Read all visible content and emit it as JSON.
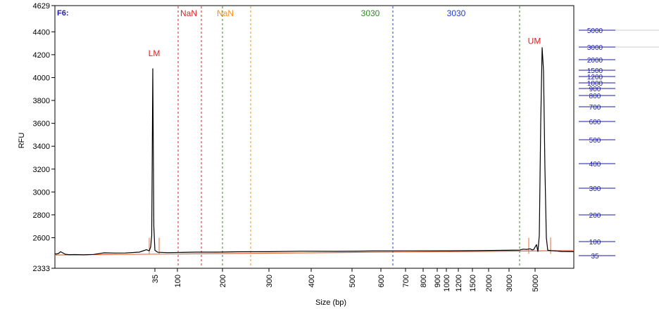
{
  "panel_label": "F6:",
  "chart_data": {
    "type": "line",
    "ylabel": "RFU",
    "xlabel": "Size (bp)",
    "ylim": [
      2333,
      4629
    ],
    "y_ticks": [
      2333,
      2600,
      2800,
      3000,
      3200,
      3400,
      3600,
      3800,
      4000,
      4200,
      4400,
      4629
    ],
    "x_ticks": [
      "35",
      "100",
      "200",
      "300",
      "400",
      "500",
      "600",
      "700",
      "800",
      "900",
      "1000",
      "1200",
      "1500",
      "2000",
      "3000",
      "5000"
    ],
    "ladder_ticks": [
      "5000",
      "3000",
      "2000",
      "1500",
      "1200",
      "1000",
      "900",
      "800",
      "700",
      "600",
      "500",
      "400",
      "300",
      "200",
      "100",
      "35"
    ],
    "peak_labels": [
      {
        "text": "LM",
        "color": "#e02020"
      },
      {
        "text": "UM",
        "color": "#e02020"
      }
    ],
    "region_labels": [
      {
        "text": "NaN",
        "color": "#e02020"
      },
      {
        "text": "NaN",
        "color": "#ff8c1a"
      },
      {
        "text": "3030",
        "color": "#2e8b22"
      },
      {
        "text": "3030",
        "color": "#1f3bd6"
      }
    ],
    "series": [
      {
        "color": "#000000",
        "points": [
          [
            0,
            2458
          ],
          [
            2,
            2458
          ],
          [
            5,
            2462
          ],
          [
            8,
            2478
          ],
          [
            11,
            2468
          ],
          [
            15,
            2455
          ],
          [
            20,
            2452
          ],
          [
            30,
            2453
          ],
          [
            40,
            2450
          ],
          [
            55,
            2454
          ],
          [
            70,
            2468
          ],
          [
            85,
            2466
          ],
          [
            100,
            2467
          ],
          [
            120,
            2474
          ],
          [
            130,
            2495
          ],
          [
            134,
            2485
          ],
          [
            136,
            2520
          ],
          [
            137.5,
            2620
          ],
          [
            139,
            4078
          ],
          [
            140.5,
            2700
          ],
          [
            142,
            2490
          ],
          [
            146,
            2473
          ],
          [
            160,
            2470
          ],
          [
            180,
            2472
          ],
          [
            200,
            2474
          ],
          [
            230,
            2474
          ],
          [
            260,
            2477
          ],
          [
            300,
            2478
          ],
          [
            350,
            2482
          ],
          [
            400,
            2481
          ],
          [
            450,
            2484
          ],
          [
            500,
            2485
          ],
          [
            560,
            2486
          ],
          [
            600,
            2487
          ],
          [
            640,
            2490
          ],
          [
            660,
            2492
          ],
          [
            665,
            2500
          ],
          [
            670,
            2498
          ],
          [
            675,
            2503
          ],
          [
            678,
            2494
          ],
          [
            680,
            2497
          ],
          [
            684,
            2540
          ],
          [
            686,
            2480
          ],
          [
            688,
            2620
          ],
          [
            690,
            3600
          ],
          [
            692,
            4262
          ],
          [
            694,
            4060
          ],
          [
            696,
            3200
          ],
          [
            698,
            2600
          ],
          [
            700,
            2490
          ],
          [
            705,
            2487
          ],
          [
            712,
            2484
          ],
          [
            720,
            2480
          ],
          [
            737,
            2478
          ]
        ]
      },
      {
        "color": "#e86a3a",
        "points": [
          [
            0,
            2449
          ],
          [
            737,
            2488
          ]
        ]
      }
    ]
  }
}
